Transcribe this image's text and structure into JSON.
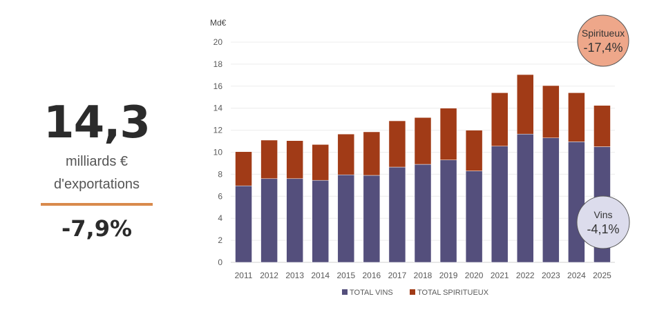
{
  "kpi": {
    "value": "14,3",
    "line1": "milliards €",
    "line2": "d'exportations",
    "change": "-7,9%",
    "rule_color": "#d98a4c"
  },
  "chart_data": {
    "type": "bar",
    "stacked": true,
    "title": "",
    "xlabel": "",
    "ylabel": "Md€",
    "ylim": [
      0,
      20
    ],
    "yticks": [
      0,
      2,
      4,
      6,
      8,
      10,
      12,
      14,
      16,
      18,
      20
    ],
    "grid": true,
    "legend_position": "bottom",
    "categories": [
      "2011",
      "2012",
      "2013",
      "2014",
      "2015",
      "2016",
      "2017",
      "2018",
      "2019",
      "2020",
      "2021",
      "2022",
      "2023",
      "2024",
      "2025"
    ],
    "series": [
      {
        "name": "TOTAL VINS",
        "color": "#544f7c",
        "values": [
          6.95,
          7.6,
          7.6,
          7.45,
          7.95,
          7.9,
          8.65,
          8.9,
          9.3,
          8.3,
          10.55,
          11.65,
          11.3,
          10.95,
          10.5
        ]
      },
      {
        "name": "TOTAL SPIRITUEUX",
        "color": "#a13b17",
        "values": [
          3.1,
          3.5,
          3.45,
          3.25,
          3.7,
          3.95,
          4.2,
          4.25,
          4.7,
          3.7,
          4.85,
          5.4,
          4.75,
          4.45,
          3.75
        ]
      }
    ],
    "totals": [
      10.05,
      11.1,
      11.05,
      10.7,
      11.65,
      11.85,
      12.85,
      13.15,
      14.0,
      12.0,
      15.4,
      17.05,
      16.05,
      15.4,
      14.25
    ],
    "annotations": [
      {
        "label": "Spiritueux",
        "value": "-17,4%",
        "fill": "#eea78a",
        "stroke": "#a13b17",
        "position": "top-right"
      },
      {
        "label": "Vins",
        "value": "-4,1%",
        "fill": "#dcdcec",
        "stroke": "#544f7c",
        "position": "bottom-right"
      }
    ]
  }
}
